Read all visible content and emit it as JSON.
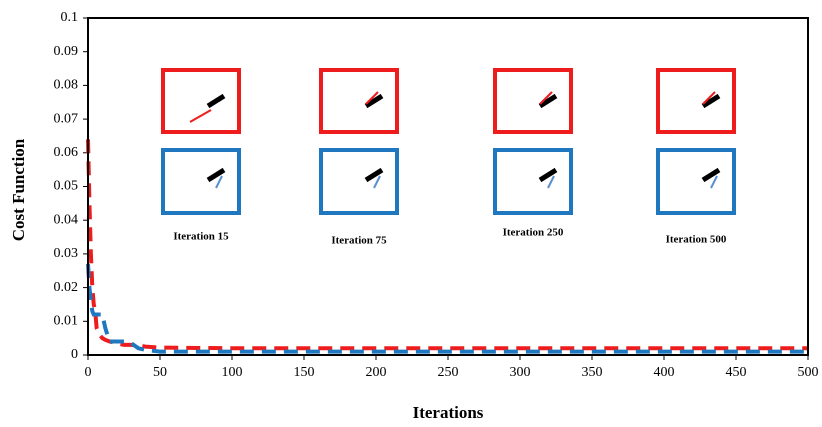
{
  "chart_data": {
    "type": "line",
    "xlabel": "Iterations",
    "ylabel": "Cost Function",
    "x": [
      0,
      1,
      2,
      3,
      4,
      5,
      6,
      8,
      10,
      12,
      15,
      20,
      25,
      30,
      35,
      40,
      50,
      100,
      150,
      200,
      250,
      300,
      350,
      400,
      450,
      500
    ],
    "series": [
      {
        "color": "#ee1c1c",
        "values": [
          0.064,
          0.045,
          0.03,
          0.02,
          0.015,
          0.013,
          0.008,
          0.006,
          0.005,
          0.0045,
          0.004,
          0.0035,
          0.003,
          0.003,
          0.0028,
          0.0025,
          0.0022,
          0.002,
          0.002,
          0.002,
          0.002,
          0.002,
          0.002,
          0.002,
          0.002,
          0.002
        ]
      },
      {
        "color": "#1f77c0",
        "values": [
          0.027,
          0.02,
          0.016,
          0.013,
          0.012,
          0.012,
          0.012,
          0.012,
          0.012,
          0.008,
          0.004,
          0.004,
          0.004,
          0.0035,
          0.002,
          0.0015,
          0.001,
          0.001,
          0.001,
          0.001,
          0.001,
          0.001,
          0.001,
          0.001,
          0.001,
          0.001
        ]
      }
    ],
    "xlim": [
      0,
      500
    ],
    "xticks": [
      0,
      50,
      100,
      150,
      200,
      250,
      300,
      350,
      400,
      450,
      500
    ],
    "ylim": [
      0,
      0.1
    ],
    "yticks": [
      0,
      0.01,
      0.02,
      0.03,
      0.04,
      0.05,
      0.06,
      0.07,
      0.08,
      0.09,
      0.1
    ],
    "annotations": [
      "Iteration 15",
      "Iteration 75",
      "Iteration 250",
      "Iteration 500"
    ]
  }
}
